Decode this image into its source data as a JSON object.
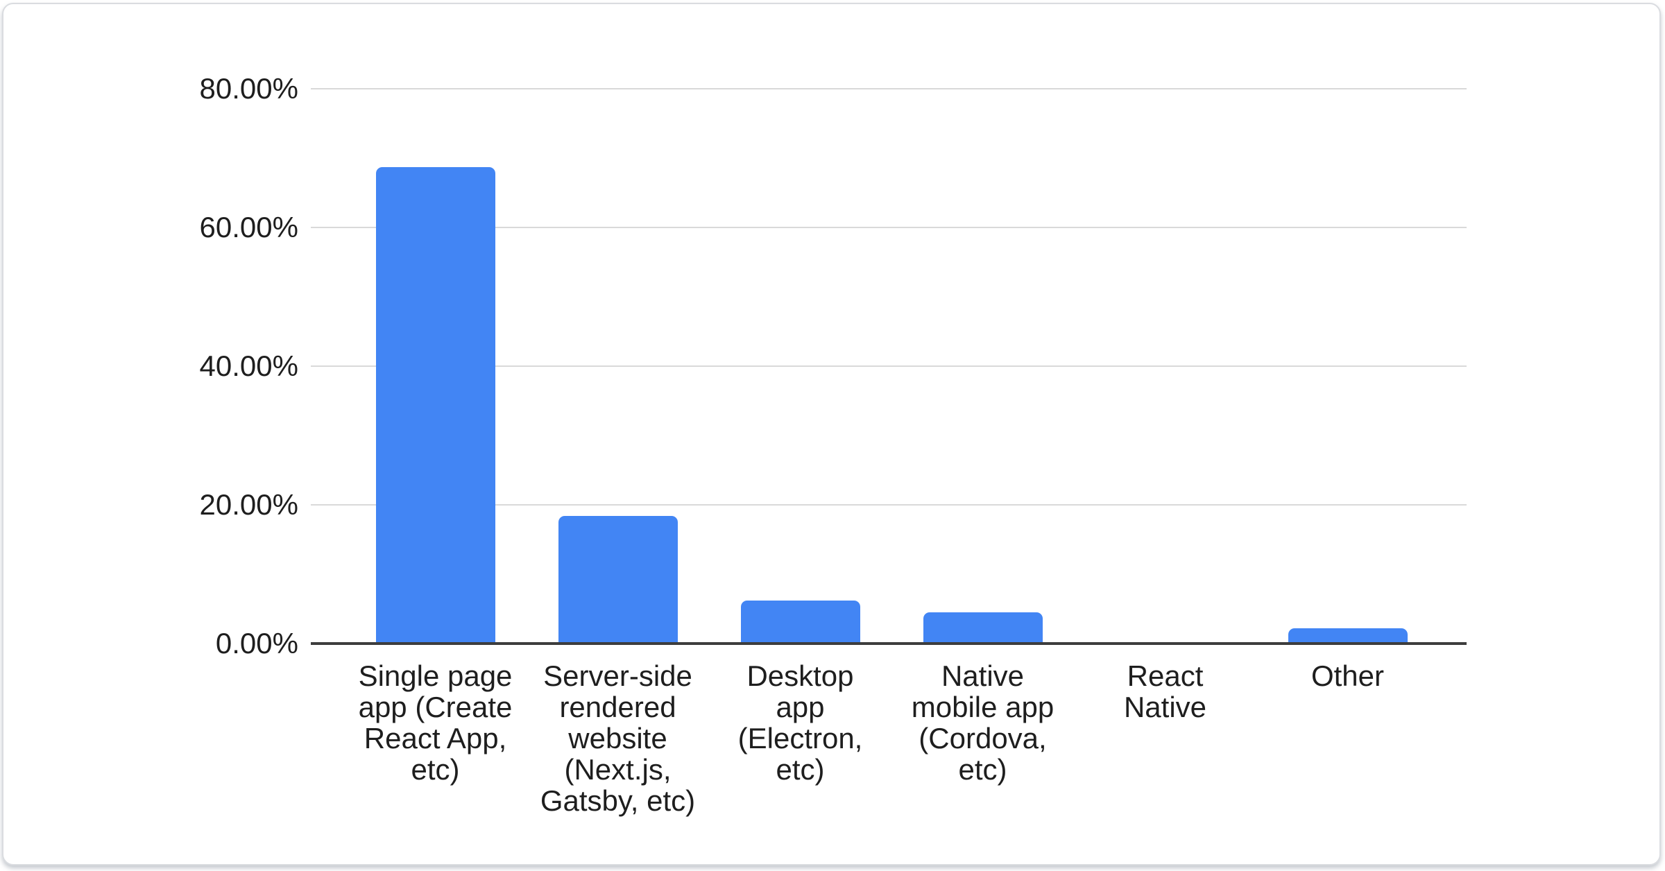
{
  "chart_data": {
    "type": "bar",
    "title": "",
    "xlabel": "",
    "ylabel": "",
    "categories": [
      "Single page app (Create React App, etc)",
      "Server-side rendered website (Next.js, Gatsby, etc)",
      "Desktop app (Electron, etc)",
      "Native mobile app (Cordova, etc)",
      "React Native",
      "Other"
    ],
    "category_label_lines": [
      [
        "Single page",
        "app (Create",
        "React App,",
        "etc)"
      ],
      [
        "Server-side",
        "rendered",
        "website",
        "(Next.js,",
        "Gatsby, etc)"
      ],
      [
        "Desktop",
        "app",
        "(Electron,",
        "etc)"
      ],
      [
        "Native",
        "mobile app",
        "(Cordova,",
        "etc)"
      ],
      [
        "React",
        "Native"
      ],
      [
        "Other"
      ]
    ],
    "values": [
      68.7,
      18.4,
      6.2,
      4.5,
      0,
      2.2
    ],
    "value_unit": "%",
    "ylim": [
      0,
      80
    ],
    "yticks": [
      {
        "value": 80,
        "label": "80.00%"
      },
      {
        "value": 60,
        "label": "60.00%"
      },
      {
        "value": 40,
        "label": "40.00%"
      },
      {
        "value": 20,
        "label": "20.00%"
      },
      {
        "value": 0,
        "label": "0.00%"
      }
    ],
    "grid": true,
    "legend": "none",
    "bar_color": "#4285f4"
  },
  "colors": {
    "bar": "#4285f4",
    "gridline": "#d9d9d9",
    "axis_line": "#3d3d3d",
    "text": "#1e1e1e",
    "card_border": "#dadce0",
    "background": "#ffffff"
  }
}
